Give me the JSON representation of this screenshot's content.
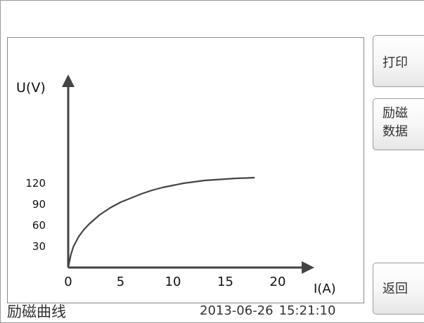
{
  "buttons": {
    "print": "打印",
    "excitation_data_line1": "励磁",
    "excitation_data_line2": "数据",
    "back": "返回"
  },
  "footer": {
    "title": "励磁曲线",
    "date": "2013-06-26",
    "time": "15:21:10"
  },
  "chart_data": {
    "type": "line",
    "xlabel": "I(A)",
    "ylabel": "U(V)",
    "xlim": [
      0,
      22
    ],
    "ylim": [
      0,
      145
    ],
    "x_ticks": [
      0,
      5,
      10,
      15,
      20
    ],
    "y_ticks": [
      30,
      60,
      90,
      120
    ],
    "grid": false,
    "colors": {
      "curve": "#444444",
      "axis": "#444444"
    },
    "series": [
      {
        "x": [
          0,
          0.25,
          0.5,
          1,
          1.5,
          2,
          3,
          4,
          5,
          6,
          7,
          8,
          9,
          10,
          11,
          12,
          13,
          14,
          15,
          16,
          17,
          17.8
        ],
        "y": [
          0,
          18,
          30,
          44,
          54,
          62,
          75,
          85,
          93,
          99,
          105,
          110,
          114,
          117,
          120,
          122,
          124,
          125,
          126,
          127,
          127.5,
          128
        ]
      }
    ]
  }
}
